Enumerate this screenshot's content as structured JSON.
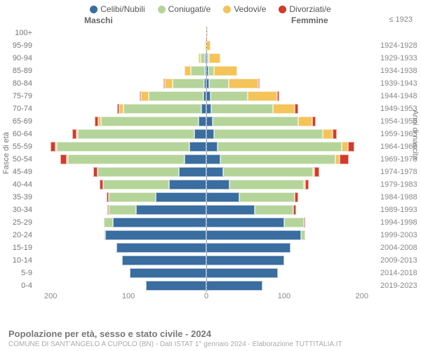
{
  "legend": [
    {
      "label": "Celibi/Nubili",
      "color": "#3a6da0"
    },
    {
      "label": "Coniugati/e",
      "color": "#b5d49a"
    },
    {
      "label": "Vedovi/e",
      "color": "#f4c35a"
    },
    {
      "label": "Divorziati/e",
      "color": "#d23b2d"
    }
  ],
  "gender": {
    "male": "Maschi",
    "female": "Femmine",
    "year_head": "≤ 1923"
  },
  "axis": {
    "left_title": "Fasce di età",
    "right_title": "Anni di nascita"
  },
  "x_ticks": [
    200,
    100,
    0,
    100,
    200
  ],
  "x_max": 220,
  "colors": {
    "single": "#3a6da0",
    "married": "#b5d49a",
    "widowed": "#f4c35a",
    "divorced": "#d23b2d",
    "tick_text": "#888888"
  },
  "rows": [
    {
      "age": "100+",
      "year": "",
      "m": {
        "s": 0,
        "c": 0,
        "v": 0,
        "d": 0
      },
      "f": {
        "s": 0,
        "c": 0,
        "v": 1,
        "d": 0
      }
    },
    {
      "age": "95-99",
      "year": "1924-1928",
      "m": {
        "s": 0,
        "c": 0,
        "v": 1,
        "d": 0
      },
      "f": {
        "s": 0,
        "c": 0,
        "v": 5,
        "d": 0
      }
    },
    {
      "age": "90-94",
      "year": "1929-1933",
      "m": {
        "s": 1,
        "c": 5,
        "v": 3,
        "d": 0
      },
      "f": {
        "s": 1,
        "c": 2,
        "v": 14,
        "d": 0
      }
    },
    {
      "age": "85-89",
      "year": "1934-1938",
      "m": {
        "s": 2,
        "c": 18,
        "v": 8,
        "d": 0
      },
      "f": {
        "s": 3,
        "c": 7,
        "v": 30,
        "d": 0
      }
    },
    {
      "age": "80-84",
      "year": "1939-1943",
      "m": {
        "s": 3,
        "c": 40,
        "v": 10,
        "d": 1
      },
      "f": {
        "s": 4,
        "c": 25,
        "v": 38,
        "d": 2
      }
    },
    {
      "age": "75-79",
      "year": "1944-1948",
      "m": {
        "s": 4,
        "c": 70,
        "v": 10,
        "d": 2
      },
      "f": {
        "s": 5,
        "c": 48,
        "v": 38,
        "d": 3
      }
    },
    {
      "age": "70-74",
      "year": "1949-1953",
      "m": {
        "s": 6,
        "c": 100,
        "v": 6,
        "d": 3
      },
      "f": {
        "s": 6,
        "c": 80,
        "v": 28,
        "d": 4
      }
    },
    {
      "age": "65-69",
      "year": "1954-1958",
      "m": {
        "s": 10,
        "c": 125,
        "v": 4,
        "d": 4
      },
      "f": {
        "s": 8,
        "c": 110,
        "v": 18,
        "d": 5
      }
    },
    {
      "age": "60-64",
      "year": "1959-1963",
      "m": {
        "s": 15,
        "c": 150,
        "v": 2,
        "d": 5
      },
      "f": {
        "s": 10,
        "c": 140,
        "v": 12,
        "d": 6
      }
    },
    {
      "age": "55-59",
      "year": "1964-1968",
      "m": {
        "s": 22,
        "c": 170,
        "v": 2,
        "d": 6
      },
      "f": {
        "s": 14,
        "c": 160,
        "v": 8,
        "d": 8
      }
    },
    {
      "age": "50-54",
      "year": "1969-1973",
      "m": {
        "s": 28,
        "c": 150,
        "v": 1,
        "d": 8
      },
      "f": {
        "s": 18,
        "c": 148,
        "v": 5,
        "d": 12
      }
    },
    {
      "age": "45-49",
      "year": "1974-1978",
      "m": {
        "s": 35,
        "c": 105,
        "v": 0,
        "d": 5
      },
      "f": {
        "s": 22,
        "c": 115,
        "v": 2,
        "d": 6
      }
    },
    {
      "age": "40-44",
      "year": "1979-1983",
      "m": {
        "s": 48,
        "c": 85,
        "v": 0,
        "d": 4
      },
      "f": {
        "s": 30,
        "c": 95,
        "v": 1,
        "d": 5
      }
    },
    {
      "age": "35-39",
      "year": "1984-1988",
      "m": {
        "s": 65,
        "c": 60,
        "v": 0,
        "d": 3
      },
      "f": {
        "s": 42,
        "c": 72,
        "v": 0,
        "d": 4
      }
    },
    {
      "age": "30-34",
      "year": "1989-1993",
      "m": {
        "s": 90,
        "c": 35,
        "v": 0,
        "d": 2
      },
      "f": {
        "s": 62,
        "c": 50,
        "v": 0,
        "d": 3
      }
    },
    {
      "age": "25-29",
      "year": "1994-1998",
      "m": {
        "s": 120,
        "c": 12,
        "v": 0,
        "d": 0
      },
      "f": {
        "s": 100,
        "c": 25,
        "v": 0,
        "d": 1
      }
    },
    {
      "age": "20-24",
      "year": "1999-2003",
      "m": {
        "s": 130,
        "c": 2,
        "v": 0,
        "d": 0
      },
      "f": {
        "s": 122,
        "c": 5,
        "v": 0,
        "d": 0
      }
    },
    {
      "age": "15-19",
      "year": "2004-2008",
      "m": {
        "s": 115,
        "c": 0,
        "v": 0,
        "d": 0
      },
      "f": {
        "s": 108,
        "c": 0,
        "v": 0,
        "d": 0
      }
    },
    {
      "age": "10-14",
      "year": "2009-2013",
      "m": {
        "s": 108,
        "c": 0,
        "v": 0,
        "d": 0
      },
      "f": {
        "s": 100,
        "c": 0,
        "v": 0,
        "d": 0
      }
    },
    {
      "age": "5-9",
      "year": "2014-2018",
      "m": {
        "s": 98,
        "c": 0,
        "v": 0,
        "d": 0
      },
      "f": {
        "s": 92,
        "c": 0,
        "v": 0,
        "d": 0
      }
    },
    {
      "age": "0-4",
      "year": "2019-2023",
      "m": {
        "s": 78,
        "c": 0,
        "v": 0,
        "d": 0
      },
      "f": {
        "s": 72,
        "c": 0,
        "v": 0,
        "d": 0
      }
    }
  ],
  "footer": {
    "title": "Popolazione per età, sesso e stato civile - 2024",
    "subtitle": "COMUNE DI SANT'ANGELO A CUPOLO (BN) - Dati ISTAT 1° gennaio 2024 - Elaborazione TUTTITALIA.IT",
    "attr": ""
  }
}
